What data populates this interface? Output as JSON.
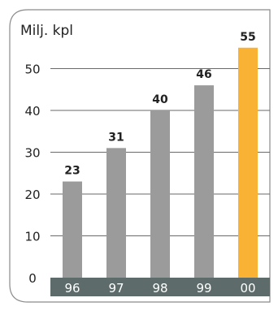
{
  "chart_data": {
    "type": "bar",
    "ylabel": "Milj. kpl",
    "categories": [
      "96",
      "97",
      "98",
      "99",
      "00"
    ],
    "values": [
      23,
      31,
      40,
      46,
      55
    ],
    "data_labels": [
      "23",
      "31",
      "40",
      "46",
      "55"
    ],
    "yticks": [
      "0",
      "10",
      "20",
      "30",
      "40",
      "50"
    ],
    "ylim": [
      0,
      60
    ],
    "grid": true,
    "highlight_index": 4
  },
  "colors": {
    "bar": "#9b9b9b",
    "highlight_bar": "#f9b233",
    "axis_band": "#5e6b6b",
    "axis_band_text": "#ffffff",
    "gridline": "#6a6a6a",
    "frame": "#8a8a8a",
    "text": "#222222"
  }
}
